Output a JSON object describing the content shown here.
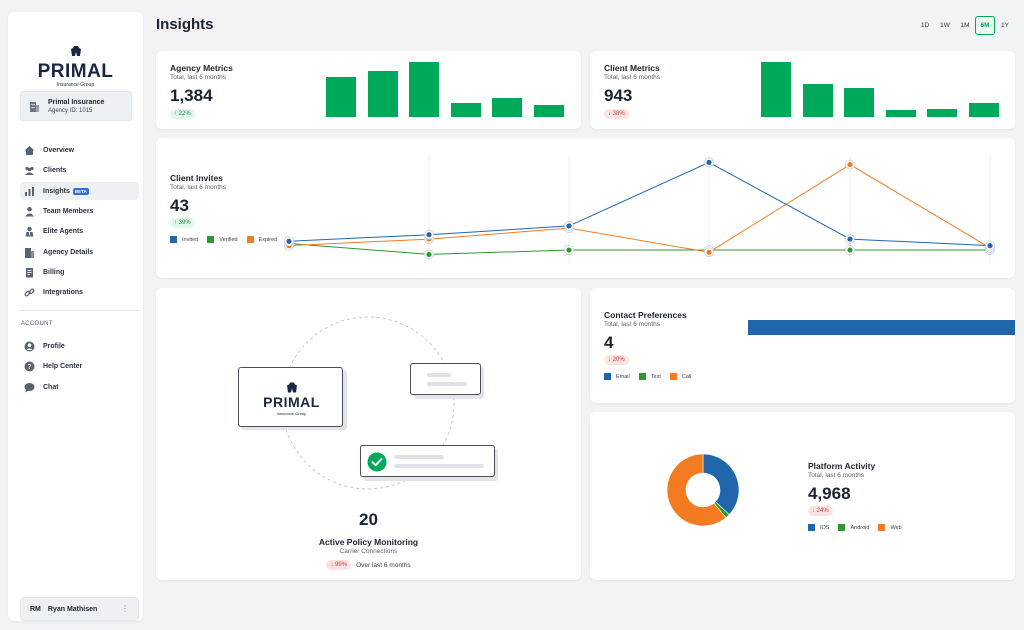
{
  "sidebar": {
    "brand": "PRIMAL",
    "brand_sub": "Insurance Group",
    "agency": {
      "name": "Primal Insurance",
      "id_label": "Agency ID: 1015"
    },
    "items": [
      {
        "label": "Overview",
        "icon": "home-icon"
      },
      {
        "label": "Clients",
        "icon": "users-icon"
      },
      {
        "label": "Insights",
        "icon": "bar-chart-icon",
        "badge": "BETA",
        "active": true
      },
      {
        "label": "Team Members",
        "icon": "user-icon"
      },
      {
        "label": "Elite Agents",
        "icon": "agent-icon"
      },
      {
        "label": "Agency Details",
        "icon": "building-icon"
      },
      {
        "label": "Billing",
        "icon": "billing-icon"
      },
      {
        "label": "Integrations",
        "icon": "link-icon"
      }
    ],
    "account_label": "ACCOUNT",
    "account_items": [
      {
        "label": "Profile",
        "icon": "profile-icon"
      },
      {
        "label": "Help Center",
        "icon": "help-icon"
      },
      {
        "label": "Chat",
        "icon": "chat-icon"
      }
    ],
    "user": {
      "initials": "RM",
      "name": "Ryan Mathisen",
      "menu": "⋮"
    }
  },
  "header": {
    "title": "Insights",
    "ranges": [
      "1D",
      "1W",
      "1M",
      "6M",
      "1Y"
    ],
    "active_range": "6M"
  },
  "colors": {
    "green": "#00a85a",
    "blue": "#2166ac",
    "orange": "#f47b20",
    "dark_green": "#2e9a2e"
  },
  "agency_metrics": {
    "title": "Agency Metrics",
    "subtitle": "Total, last 6 months",
    "value": "1,384",
    "change": "↑ 22%",
    "chart_data": {
      "type": "bar",
      "values": [
        40,
        46,
        55,
        14,
        19,
        12
      ]
    }
  },
  "client_metrics": {
    "title": "Client Metrics",
    "subtitle": "Total, last 6 months",
    "value": "943",
    "change": "↓ 38%",
    "chart_data": {
      "type": "bar",
      "values": [
        55,
        33,
        29,
        7,
        8,
        14
      ]
    }
  },
  "client_invites": {
    "title": "Client Invites",
    "subtitle": "Total, last 6 months",
    "value": "43",
    "change": "↑ 39%",
    "legend": [
      "Invited",
      "Verified",
      "Expired"
    ],
    "chart_data": {
      "type": "line",
      "series": [
        {
          "name": "Invited",
          "values": [
            4,
            7,
            11,
            40,
            5,
            2
          ]
        },
        {
          "name": "Verified",
          "values": [
            3,
            -2,
            0,
            0,
            0,
            0
          ]
        },
        {
          "name": "Expired",
          "values": [
            2,
            5,
            10,
            -1,
            39,
            1
          ]
        }
      ],
      "ylim": [
        -5,
        42
      ]
    }
  },
  "policy_monitoring": {
    "logo_brand": "PRIMAL",
    "logo_sub": "Insurance Group",
    "value": "20",
    "title": "Active Policy Monitoring",
    "subtitle": "Carrier Connections",
    "change": "↓ 99%",
    "change_note": "Over last 6 months"
  },
  "contact_preferences": {
    "title": "Contact Preferences",
    "subtitle": "Total, last 6 months",
    "value": "4",
    "change": "↓ 20%",
    "legend": [
      "Email",
      "Text",
      "Call"
    ],
    "chart_data": {
      "type": "bar",
      "series": [
        {
          "name": "Email",
          "values": [
            4
          ]
        },
        {
          "name": "Text",
          "values": [
            0
          ]
        },
        {
          "name": "Call",
          "values": [
            0
          ]
        }
      ]
    }
  },
  "platform_activity": {
    "title": "Platform Activity",
    "subtitle": "Total, last 6 months",
    "value": "4,968",
    "change": "↓ 24%",
    "legend": [
      "IOS",
      "Android",
      "Web"
    ],
    "chart_data": {
      "type": "pie",
      "labels": [
        "IOS",
        "Android",
        "Web"
      ],
      "values": [
        37,
        2,
        61
      ]
    }
  }
}
